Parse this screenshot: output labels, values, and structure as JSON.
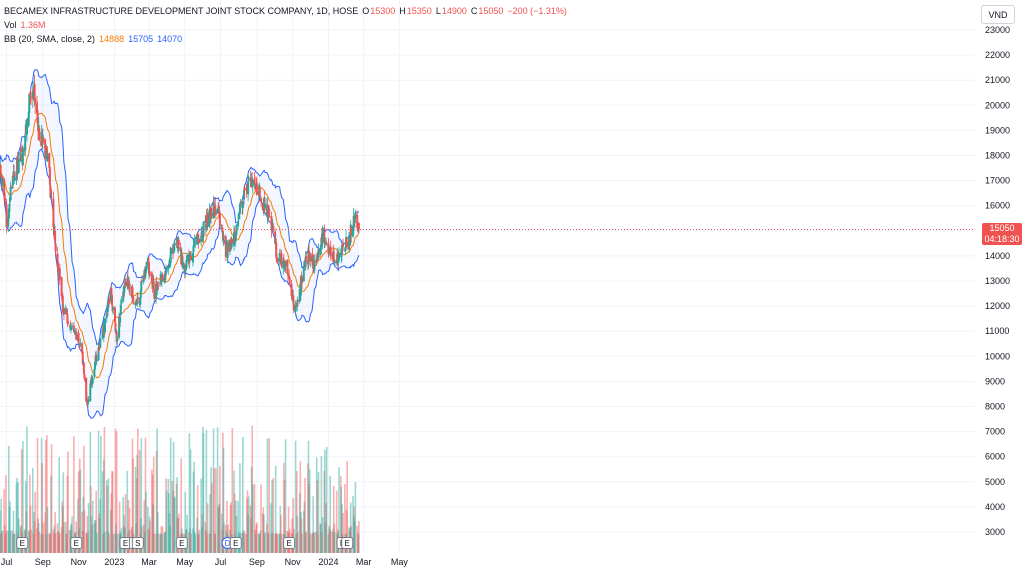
{
  "legend": {
    "title": "BECAMEX INFRASTRUCTURE DEVELOPMENT JOINT STOCK COMPANY, 1D, HOSE",
    "open_label": "O",
    "open": "15300",
    "high_label": "H",
    "high": "15350",
    "low_label": "L",
    "low": "14900",
    "close_label": "C",
    "close": "15050",
    "change": "−200 (−1.31%)",
    "vol_label": "Vol",
    "vol_value": "1.36M",
    "bb_label": "BB (20, SMA, close, 2)",
    "bb_basis": "14888",
    "bb_upper": "15705",
    "bb_lower": "14070"
  },
  "currency_label": "VND",
  "last_price": {
    "price": "15050",
    "countdown": "04:18:30"
  },
  "event_markers": [
    "E",
    "E",
    "E",
    "E",
    "S",
    "E",
    "D",
    "E",
    "E",
    "E",
    "E"
  ],
  "colors": {
    "up": "#26a69a",
    "down": "#ef5350",
    "basis": "#f57c00",
    "band": "#2962ff",
    "band_fill": "#2962ff",
    "grid": "#f0f3fa",
    "text": "#131722",
    "axis_text": "#131722"
  },
  "chart_data": {
    "type": "candlestick",
    "symbol": "BECAMEX INFRASTRUCTURE DEVELOPMENT JOINT STOCK COMPANY",
    "interval": "1D",
    "exchange": "HOSE",
    "currency": "VND",
    "x_ticks": [
      "Jul",
      "Sep",
      "Nov",
      "2023",
      "Mar",
      "May",
      "Jul",
      "Sep",
      "Nov",
      "2024",
      "Mar",
      "May"
    ],
    "x_tick_dates": [
      "2022-07-01",
      "2022-09-01",
      "2022-11-01",
      "2023-01-01",
      "2023-03-01",
      "2023-05-01",
      "2023-07-01",
      "2023-09-01",
      "2023-11-01",
      "2024-01-01",
      "2024-03-01",
      "2024-05-01"
    ],
    "y_ticks": [
      3000,
      4000,
      5000,
      6000,
      7000,
      8000,
      9000,
      10000,
      11000,
      12000,
      13000,
      14000,
      15000,
      16000,
      17000,
      18000,
      19000,
      20000,
      21000,
      22000,
      23000
    ],
    "ylim": [
      2300,
      23800
    ],
    "price_range_start": "2022-06-20",
    "price_path": [
      {
        "date": "2022-06-20",
        "close": 17600
      },
      {
        "date": "2022-07-01",
        "close": 15500
      },
      {
        "date": "2022-07-15",
        "close": 17300
      },
      {
        "date": "2022-07-30",
        "close": 18100
      },
      {
        "date": "2022-08-10",
        "close": 20500
      },
      {
        "date": "2022-08-15",
        "close": 21000
      },
      {
        "date": "2022-08-25",
        "close": 19000
      },
      {
        "date": "2022-09-10",
        "close": 17800
      },
      {
        "date": "2022-09-20",
        "close": 15000
      },
      {
        "date": "2022-10-05",
        "close": 12000
      },
      {
        "date": "2022-10-20",
        "close": 11000
      },
      {
        "date": "2022-11-05",
        "close": 10500
      },
      {
        "date": "2022-11-15",
        "close": 8100
      },
      {
        "date": "2022-11-30",
        "close": 9800
      },
      {
        "date": "2022-12-15",
        "close": 11200
      },
      {
        "date": "2022-12-25",
        "close": 12600
      },
      {
        "date": "2023-01-05",
        "close": 10800
      },
      {
        "date": "2023-01-20",
        "close": 13000
      },
      {
        "date": "2023-02-10",
        "close": 12000
      },
      {
        "date": "2023-02-25",
        "close": 13800
      },
      {
        "date": "2023-03-10",
        "close": 12500
      },
      {
        "date": "2023-04-01",
        "close": 13600
      },
      {
        "date": "2023-04-15",
        "close": 14700
      },
      {
        "date": "2023-04-30",
        "close": 13500
      },
      {
        "date": "2023-05-20",
        "close": 14500
      },
      {
        "date": "2023-06-10",
        "close": 15500
      },
      {
        "date": "2023-06-25",
        "close": 15900
      },
      {
        "date": "2023-07-10",
        "close": 14100
      },
      {
        "date": "2023-07-25",
        "close": 14800
      },
      {
        "date": "2023-08-10",
        "close": 16500
      },
      {
        "date": "2023-08-20",
        "close": 17000
      },
      {
        "date": "2023-09-05",
        "close": 16500
      },
      {
        "date": "2023-09-25",
        "close": 15400
      },
      {
        "date": "2023-10-05",
        "close": 14000
      },
      {
        "date": "2023-10-20",
        "close": 13600
      },
      {
        "date": "2023-11-05",
        "close": 11800
      },
      {
        "date": "2023-11-25",
        "close": 14000
      },
      {
        "date": "2023-12-10",
        "close": 13500
      },
      {
        "date": "2023-12-22",
        "close": 14800
      },
      {
        "date": "2024-01-10",
        "close": 13800
      },
      {
        "date": "2024-01-25",
        "close": 14200
      },
      {
        "date": "2024-02-05",
        "close": 14600
      },
      {
        "date": "2024-02-15",
        "close": 15700
      },
      {
        "date": "2024-02-22",
        "close": 15050
      }
    ],
    "volume": {
      "max_shown_m": 7.8,
      "last_m": 1.36
    },
    "bollinger": {
      "period": 20,
      "type": "SMA",
      "source": "close",
      "mult": 2,
      "basis": 14888,
      "upper": 15705,
      "lower": 14070
    },
    "last": {
      "open": 15300,
      "high": 15350,
      "low": 14900,
      "close": 15050,
      "change": -200,
      "change_pct": -1.31
    }
  }
}
